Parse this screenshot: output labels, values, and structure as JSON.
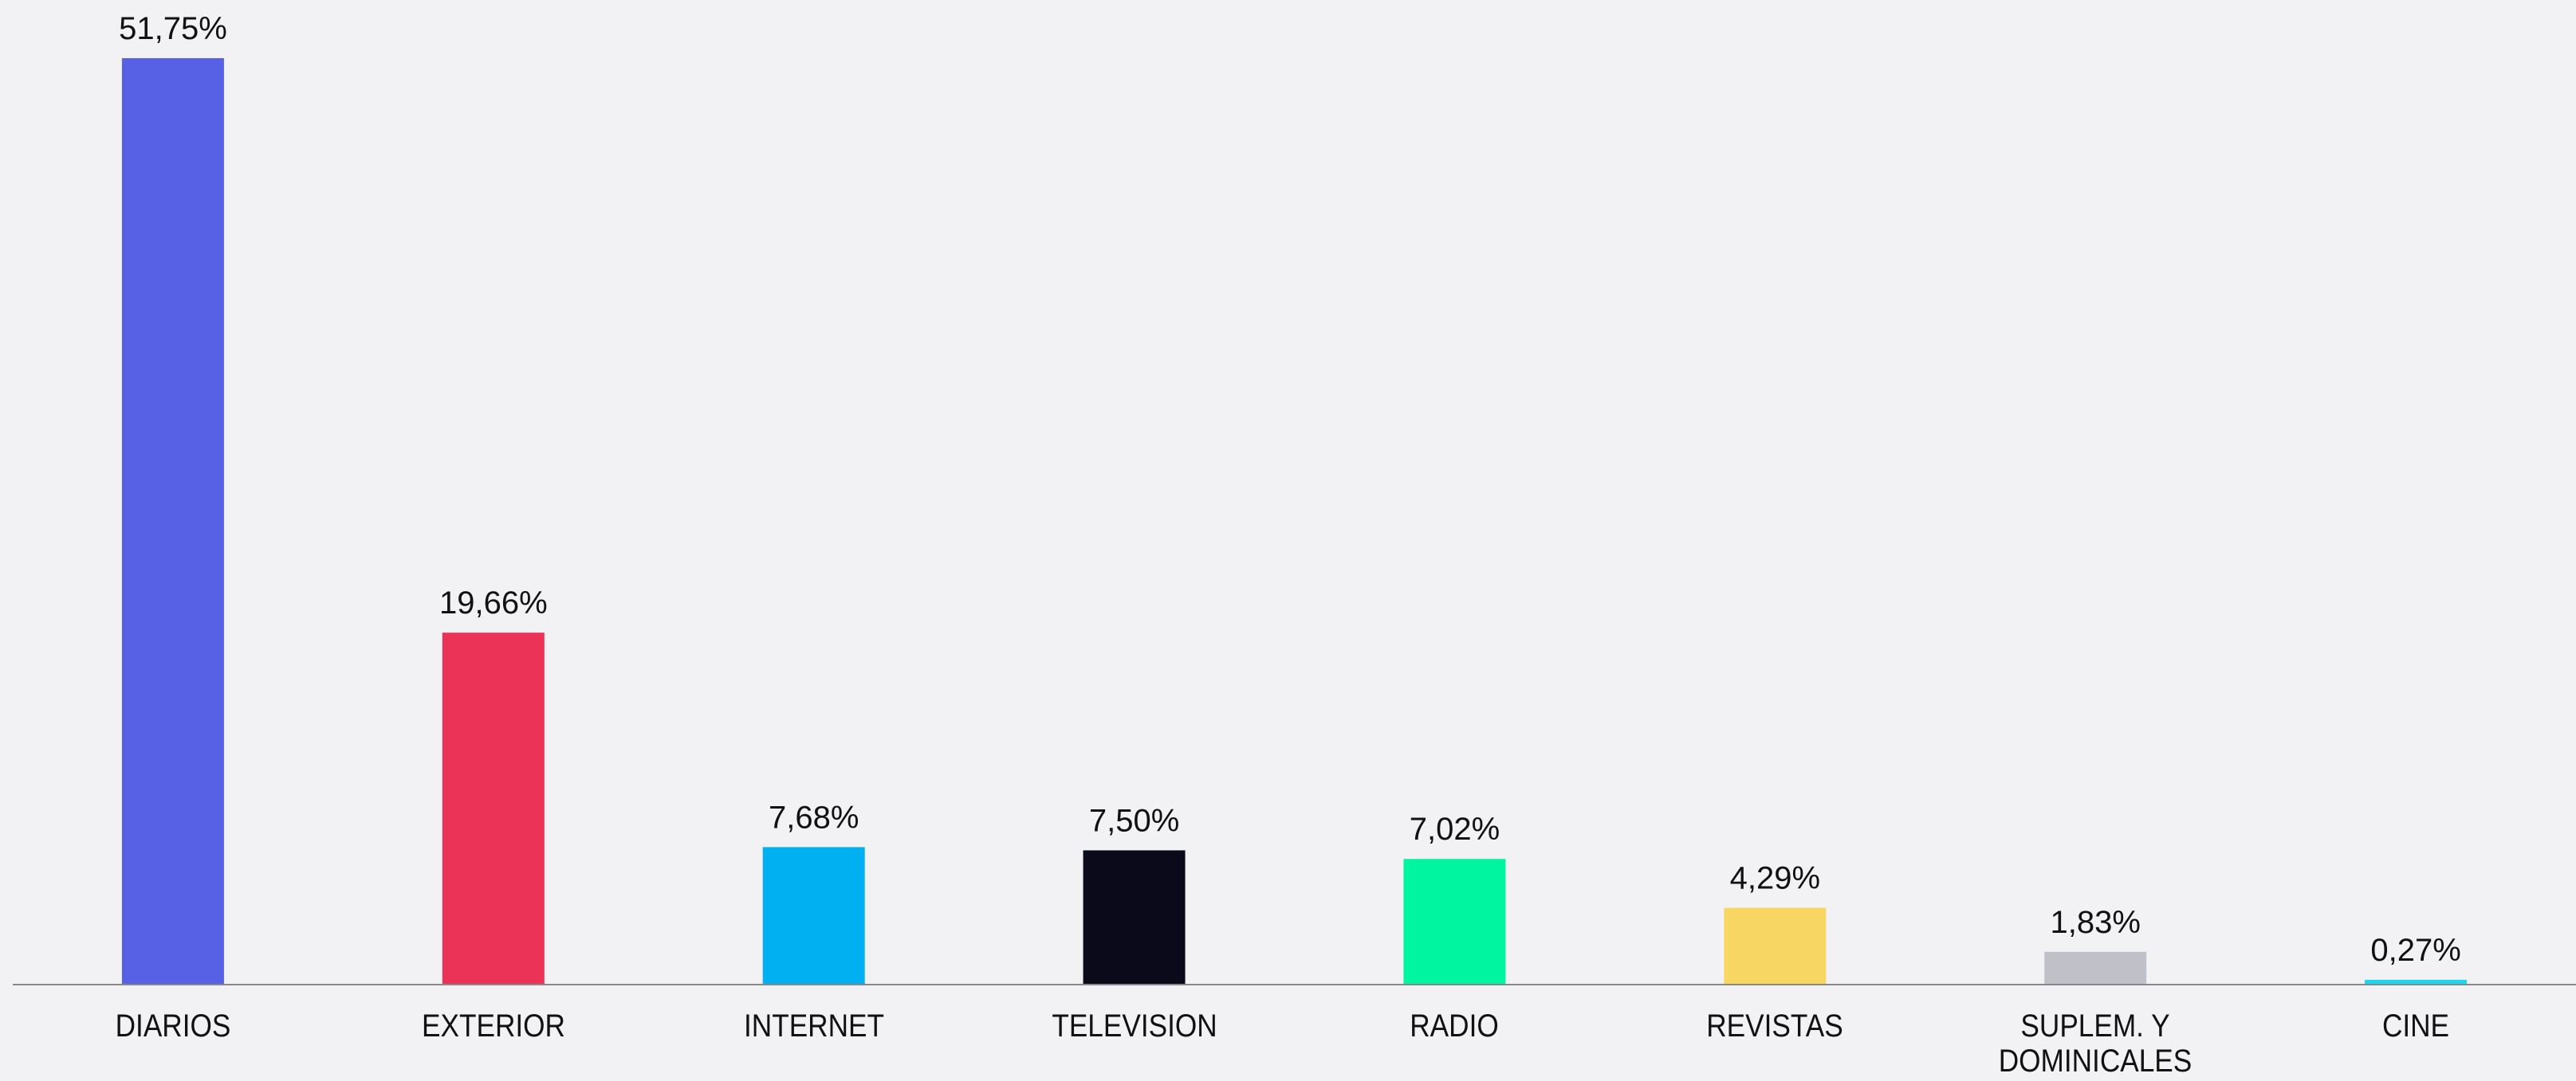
{
  "chart_data": {
    "type": "bar",
    "categories": [
      "DIARIOS",
      "EXTERIOR",
      "INTERNET",
      "TELEVISION",
      "RADIO",
      "REVISTAS",
      "SUPLEM. Y DOMINICALES",
      "CINE"
    ],
    "values": [
      51.75,
      19.66,
      7.68,
      7.5,
      7.02,
      4.29,
      1.83,
      0.27
    ],
    "value_labels": [
      "51,75%",
      "19,66%",
      "7,68%",
      "7,50%",
      "7,02%",
      "4,29%",
      "1,83%",
      "0,27%"
    ],
    "colors": [
      "#5661e6",
      "#ea3357",
      "#00b0f0",
      "#0a0a1a",
      "#00f5a0",
      "#f8d664",
      "#c0c0c8",
      "#1ad8f0"
    ],
    "ylim": [
      0,
      55
    ]
  }
}
